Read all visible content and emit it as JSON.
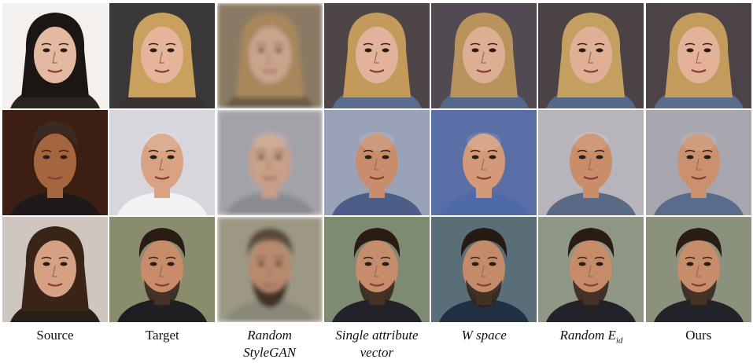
{
  "columns": [
    {
      "key": "source",
      "line1": "Source",
      "line2": "",
      "italic": false
    },
    {
      "key": "target",
      "line1": "Target",
      "line2": "",
      "italic": false
    },
    {
      "key": "random-stylegan",
      "line1": "Random",
      "line2": "StyleGAN",
      "italic": true
    },
    {
      "key": "single-attribute-vector",
      "line1": "Single attribute",
      "line2": "vector",
      "italic": true
    },
    {
      "key": "w-space",
      "line1": "W space",
      "line2": "",
      "italic": true
    },
    {
      "key": "random-eid",
      "line1": "Random E",
      "sub": "id",
      "line2": "",
      "italic": true
    },
    {
      "key": "ours",
      "line1": "Ours",
      "line2": "",
      "italic": false
    }
  ],
  "rows": [
    {
      "name": "row-blonde-woman",
      "cells": [
        {
          "bg": "#f3f0ee",
          "skin": "#e4b9a2",
          "hair": "#1b1513",
          "cloth": "#2a2320",
          "blur": 0
        },
        {
          "bg": "#3a3838",
          "skin": "#e5b49a",
          "hair": "#c9a05e",
          "cloth": "#3a3230",
          "blur": 0
        },
        {
          "bg": "#8a7a63",
          "skin": "#c9a48d",
          "hair": "#a8875d",
          "cloth": "#6b5a4a",
          "blur": 3
        },
        {
          "bg": "#4d4546",
          "skin": "#e2b39a",
          "hair": "#c49a5a",
          "cloth": "#5b6d8c",
          "blur": 0
        },
        {
          "bg": "#524a52",
          "skin": "#ddae94",
          "hair": "#b8935c",
          "cloth": "#56688a",
          "blur": 0
        },
        {
          "bg": "#4a4244",
          "skin": "#e0af95",
          "hair": "#c4a060",
          "cloth": "#556a8a",
          "blur": 0
        },
        {
          "bg": "#4b4347",
          "skin": "#e3b298",
          "hair": "#c39b5d",
          "cloth": "#5a6d8d",
          "blur": 0
        }
      ]
    },
    {
      "name": "row-bald-man",
      "cells": [
        {
          "bg": "#3c1f12",
          "skin": "#a5663f",
          "hair": "#3a2a22",
          "cloth": "#1e1a1a",
          "blur": 0
        },
        {
          "bg": "#d8d6dc",
          "skin": "#d9a283",
          "hair": "#d9a283",
          "cloth": "#f2f2f4",
          "blur": 0
        },
        {
          "bg": "#a3a2a8",
          "skin": "#c9a088",
          "hair": "#a08a6e",
          "cloth": "#8a8a90",
          "blur": 3
        },
        {
          "bg": "#9aa2b8",
          "skin": "#c88d6d",
          "hair": "#2a1e18",
          "cloth": "#4c5d8a",
          "blur": 0
        },
        {
          "bg": "#5a6fa5",
          "skin": "#d39a7a",
          "hair": "#2c201a",
          "cloth": "#4f6aa8",
          "blur": 0
        },
        {
          "bg": "#b8b4bc",
          "skin": "#c98d6a",
          "hair": "#2a1e18",
          "cloth": "#5a6a86",
          "blur": 0
        },
        {
          "bg": "#a8a6ae",
          "skin": "#cb906e",
          "hair": "#2b1f19",
          "cloth": "#5a6c8c",
          "blur": 0
        }
      ]
    },
    {
      "name": "row-bearded-man",
      "cells": [
        {
          "bg": "#cfc6bf",
          "skin": "#d6a082",
          "hair": "#3a2418",
          "cloth": "#2a1e18",
          "blur": 0
        },
        {
          "bg": "#8a8c6e",
          "skin": "#c88c6a",
          "hair": "#2a1c14",
          "cloth": "#1e1e22",
          "blur": 0
        },
        {
          "bg": "#9c9884",
          "skin": "#b88a6e",
          "hair": "#5a4a3a",
          "cloth": "#8a8878",
          "blur": 3
        },
        {
          "bg": "#7e8a72",
          "skin": "#c58d6c",
          "hair": "#2a1c14",
          "cloth": "#22232a",
          "blur": 0
        },
        {
          "bg": "#5a6e78",
          "skin": "#c48b6a",
          "hair": "#261a14",
          "cloth": "#223044",
          "blur": 0
        },
        {
          "bg": "#8e9686",
          "skin": "#c68c6a",
          "hair": "#2a1c14",
          "cloth": "#22232a",
          "blur": 0
        },
        {
          "bg": "#8a927e",
          "skin": "#c78d6b",
          "hair": "#2a1c14",
          "cloth": "#22232a",
          "blur": 0
        }
      ]
    }
  ]
}
